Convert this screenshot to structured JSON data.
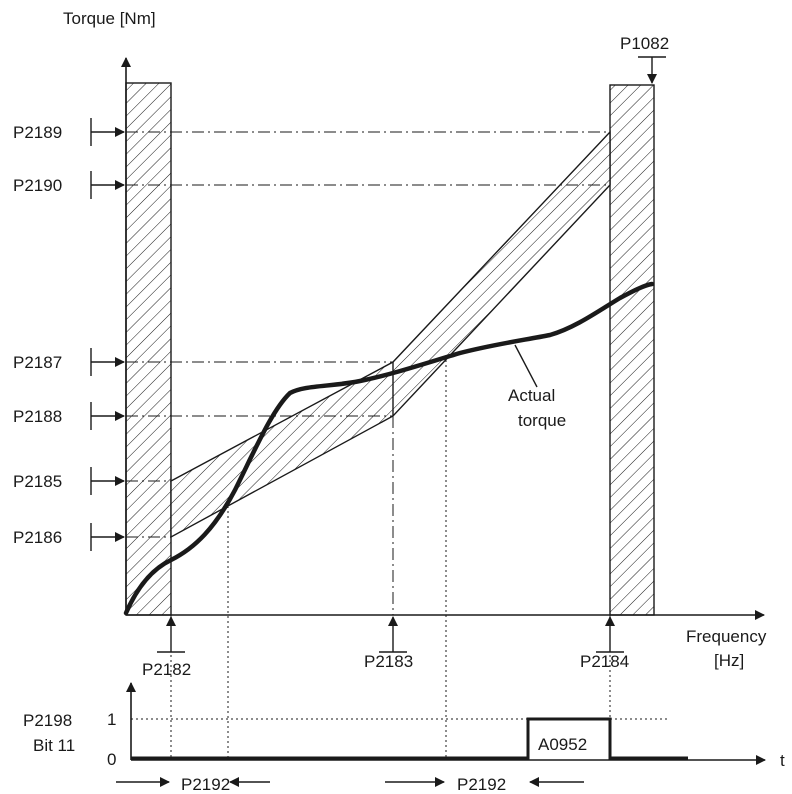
{
  "axes": {
    "y_label": "Torque [Nm]",
    "x_label_line1": "Frequency",
    "x_label_line2": "[Hz]",
    "time_label": "t"
  },
  "params": {
    "p2189": "P2189",
    "p2190": "P2190",
    "p2187": "P2187",
    "p2188": "P2188",
    "p2185": "P2185",
    "p2186": "P2186",
    "p1082": "P1082",
    "p2182": "P2182",
    "p2183": "P2183",
    "p2184": "P2184"
  },
  "curve": {
    "label_line1": "Actual",
    "label_line2": "torque"
  },
  "signal": {
    "name_line1": "P2198",
    "name_line2": "Bit 11",
    "level_high": "1",
    "level_low": "0",
    "warning": "A0952",
    "delay_left": "P2192",
    "delay_right": "P2192"
  }
}
